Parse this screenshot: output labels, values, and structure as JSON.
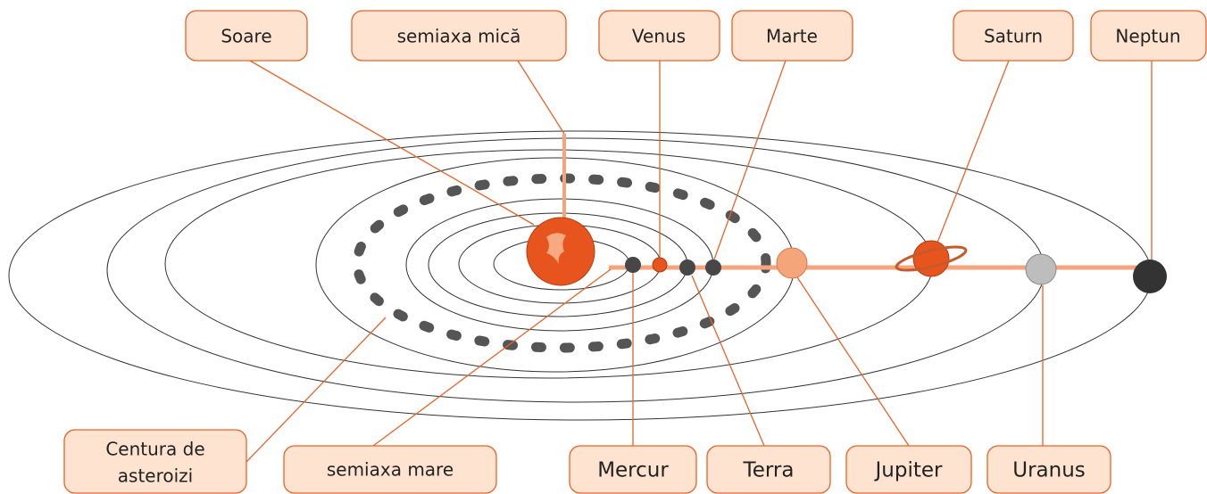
{
  "labels": {
    "sun": "Soare",
    "minor_semiaxis": "semiaxa mică",
    "venus": "Venus",
    "mars": "Marte",
    "saturn": "Saturn",
    "neptune": "Neptun",
    "asteroid_belt": [
      "Centura de",
      "asteroizi"
    ],
    "major_semiaxis": "semiaxa mare",
    "mercury": "Mercur",
    "earth": "Terra",
    "jupiter": "Jupiter",
    "uranus": "Uranus"
  }
}
